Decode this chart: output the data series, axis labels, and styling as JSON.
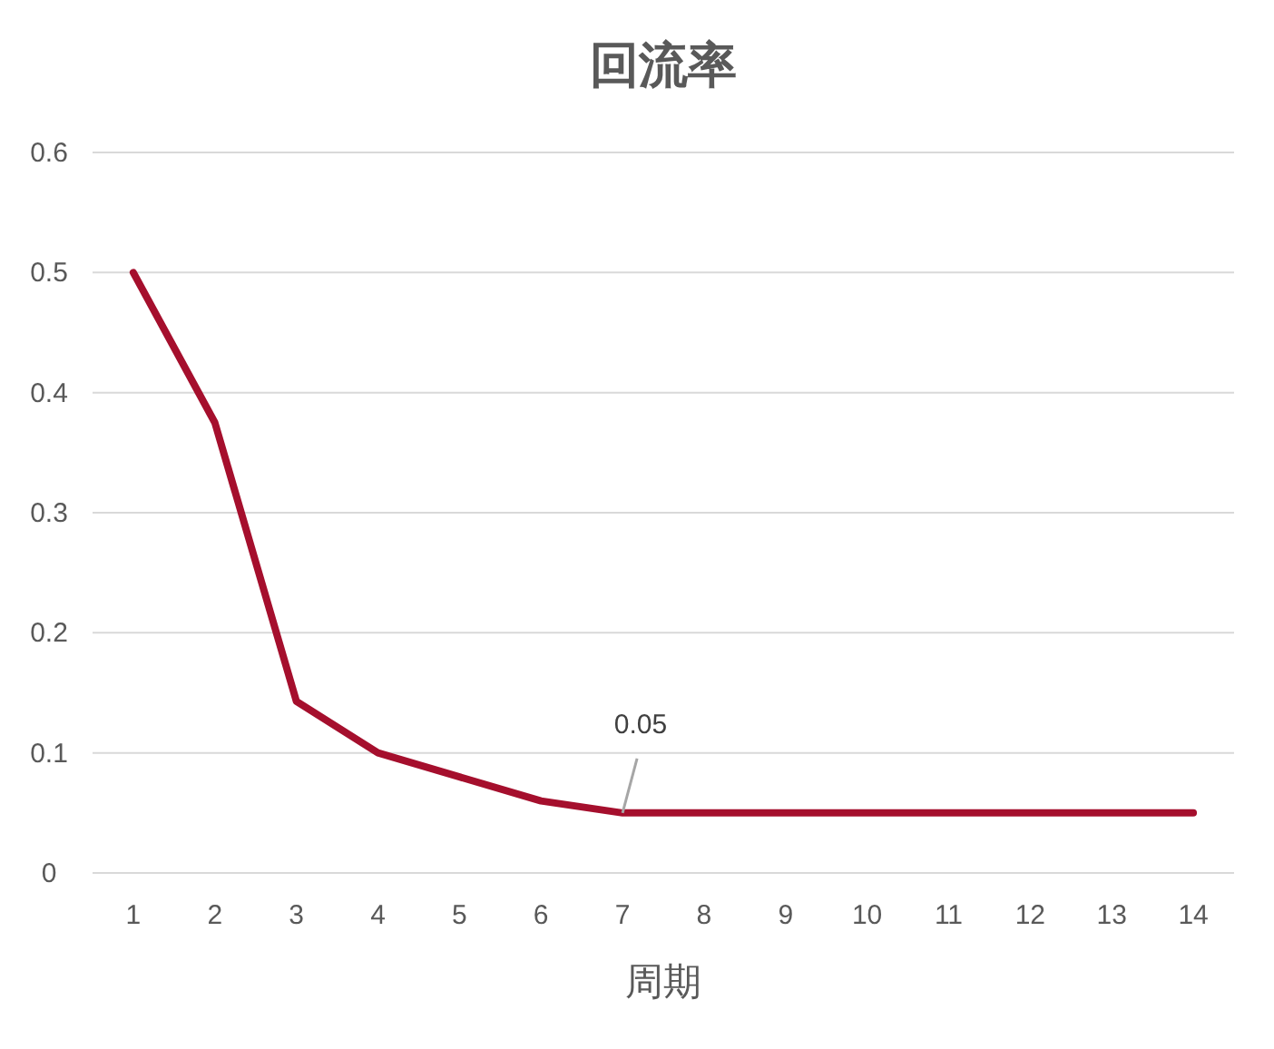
{
  "chart_data": {
    "type": "line",
    "title": "回流率",
    "xlabel": "周期",
    "categories": [
      "1",
      "2",
      "3",
      "4",
      "5",
      "6",
      "7",
      "8",
      "9",
      "10",
      "11",
      "12",
      "13",
      "14"
    ],
    "series": [
      {
        "color": "#a50f2d",
        "values": [
          0.5,
          0.375,
          0.143,
          0.1,
          0.08,
          0.06,
          0.05,
          0.05,
          0.05,
          0.05,
          0.05,
          0.05,
          0.05,
          0.05
        ]
      }
    ],
    "ylim": [
      0,
      0.6
    ],
    "yticks": [
      0,
      0.1,
      0.2,
      0.3,
      0.4,
      0.5,
      0.6
    ],
    "grid": "y",
    "annotations": [
      {
        "text": "0.05",
        "x": "7",
        "y": 0.05
      }
    ]
  }
}
